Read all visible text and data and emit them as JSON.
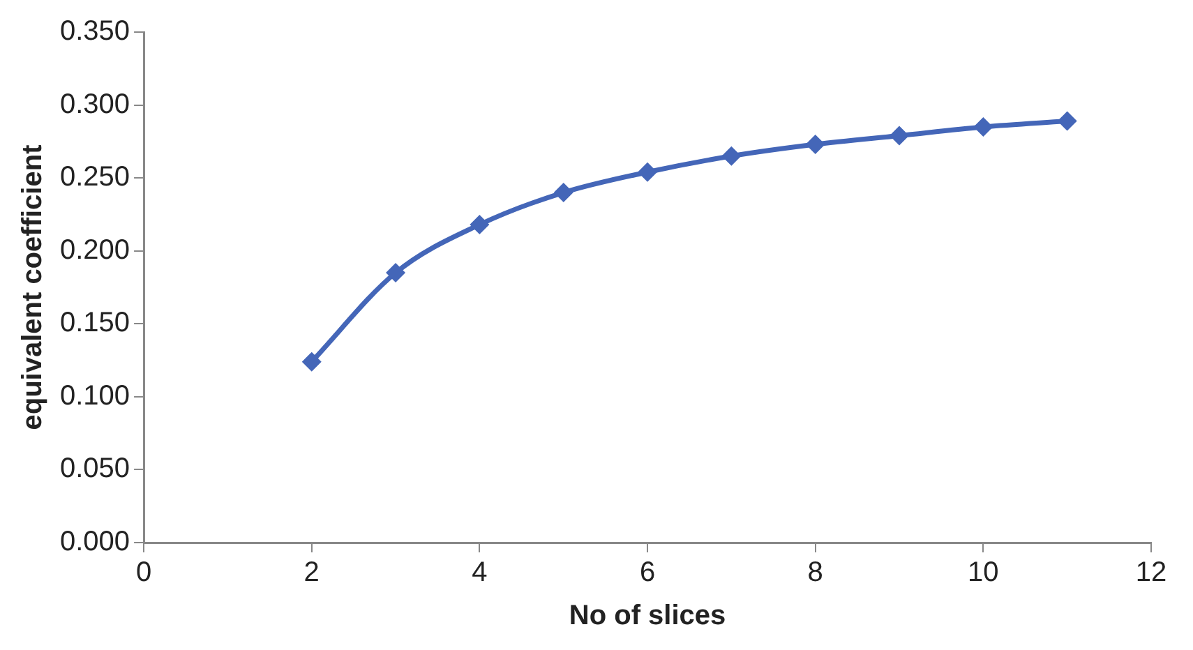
{
  "chart_data": {
    "type": "line",
    "xlabel": "No of slices",
    "ylabel": "equivalent coefficient",
    "x": [
      2,
      3,
      4,
      5,
      6,
      7,
      8,
      9,
      10,
      11
    ],
    "series": [
      {
        "color": "#4466b8",
        "values": [
          0.124,
          0.185,
          0.218,
          0.24,
          0.254,
          0.265,
          0.273,
          0.279,
          0.285,
          0.289
        ]
      }
    ],
    "xlim": [
      0,
      12
    ],
    "xticks": [
      0,
      2,
      4,
      6,
      8,
      10,
      12
    ],
    "ylim": [
      0,
      0.35
    ],
    "yticks": [
      {
        "value": 0,
        "label": "0.000"
      },
      {
        "value": 0.05,
        "label": "0.050"
      },
      {
        "value": 0.1,
        "label": "0.100"
      },
      {
        "value": 0.15,
        "label": "0.150"
      },
      {
        "value": 0.2,
        "label": "0.200"
      },
      {
        "value": 0.25,
        "label": "0.250"
      },
      {
        "value": 0.3,
        "label": "0.300"
      },
      {
        "value": 0.35,
        "label": "0.350"
      }
    ],
    "grid": false,
    "legend": false,
    "marker": "diamond",
    "line_style": "solid"
  }
}
